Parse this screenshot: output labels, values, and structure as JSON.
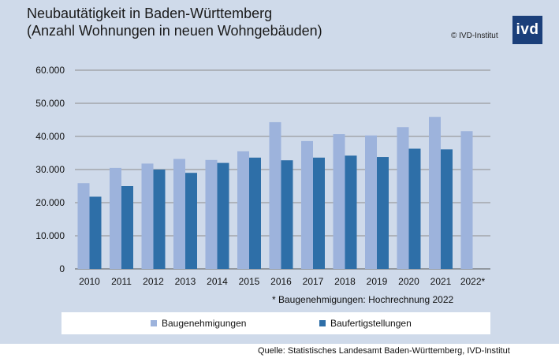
{
  "title_line1": "Neubautätigkeit in Baden-Württemberg",
  "title_line2": "(Anzahl Wohnungen in neuen Wohngebäuden)",
  "copyright": "© IVD-Institut",
  "logo_text": "ivd",
  "note": "* Baugenehmigungen: Hochrechnung  2022",
  "source": "Quelle: Statistisches Landesamt Baden-Württemberg, IVD-Institut",
  "colors": {
    "panel": "#cfdaea",
    "baugenehmigungen": "#9db3dc",
    "baufertigstellungen": "#2e6fa8",
    "logo": "#1b3f7a"
  },
  "chart_data": {
    "type": "bar",
    "title": "Neubautätigkeit in Baden-Württemberg (Anzahl Wohnungen in neuen Wohngebäuden)",
    "categories": [
      "2010",
      "2011",
      "2012",
      "2013",
      "2014",
      "2015",
      "2016",
      "2017",
      "2018",
      "2019",
      "2020",
      "2021",
      "2022*"
    ],
    "series": [
      {
        "name": "Baugenehmigungen",
        "values": [
          25900,
          30500,
          31800,
          33200,
          32900,
          35500,
          44300,
          38600,
          40700,
          40300,
          42800,
          45900,
          41600
        ]
      },
      {
        "name": "Baufertigstellungen",
        "values": [
          21800,
          25000,
          30000,
          29000,
          32000,
          33600,
          32800,
          33600,
          34200,
          33800,
          36300,
          36100,
          null
        ]
      }
    ],
    "ylim": [
      0,
      60000
    ],
    "yticks": [
      "0",
      "10.000",
      "20.000",
      "30.000",
      "40.000",
      "50.000",
      "60.000"
    ],
    "grid": true,
    "legend": "bottom"
  }
}
